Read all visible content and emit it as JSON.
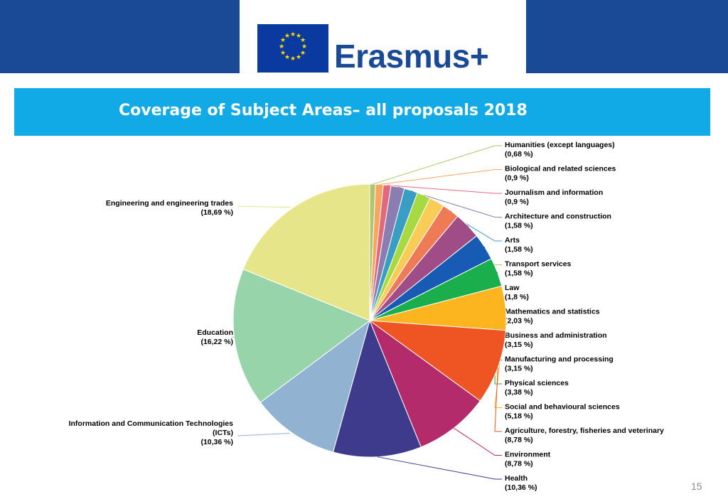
{
  "header": {
    "brand": "Erasmus+",
    "brand_colors": {
      "band": "#1a4a96",
      "title_bar": "#12aae6"
    }
  },
  "page": {
    "number": "15"
  },
  "chart_data": {
    "type": "pie",
    "title": "Coverage of Subject Areas– all proposals 2018",
    "start_direction": "top, clockwise",
    "slices": [
      {
        "label": "Humanities (except languages)",
        "value_label": "(0,68 %)",
        "value": 0.68,
        "color": "#b2c56e"
      },
      {
        "label": "Biological and related sciences",
        "value_label": "(0,9 %)",
        "value": 0.9,
        "color": "#f7a65e"
      },
      {
        "label": "Journalism and information",
        "value_label": "(0,9 %)",
        "value": 0.9,
        "color": "#e4687b"
      },
      {
        "label": "Architecture and construction",
        "value_label": "(1,58 %)",
        "value": 1.58,
        "color": "#8a7db2"
      },
      {
        "label": "Arts",
        "value_label": "(1,58 %)",
        "value": 1.58,
        "color": "#3a9ec4"
      },
      {
        "label": "Transport services",
        "value_label": "(1,58 %)",
        "value": 1.58,
        "color": "#a7d940"
      },
      {
        "label": "Law",
        "value_label": "(1,8 %)",
        "value": 1.8,
        "color": "#f9cc57"
      },
      {
        "label": "Mathematics and statistics",
        "value_label": "(2,03 %)",
        "value": 2.03,
        "color": "#ee7a56"
      },
      {
        "label": "Business and administration",
        "value_label": "(3,15 %)",
        "value": 3.15,
        "color": "#a04c86"
      },
      {
        "label": "Manufacturing and processing",
        "value_label": "(3,15 %)",
        "value": 3.15,
        "color": "#175bb5"
      },
      {
        "label": "Physical sciences",
        "value_label": "(3,38 %)",
        "value": 3.38,
        "color": "#1aae4c"
      },
      {
        "label": "Social and behavioural sciences",
        "value_label": "(5,18 %)",
        "value": 5.18,
        "color": "#fcb51f"
      },
      {
        "label": "Agriculture, forestry, fisheries and veterinary",
        "value_label": "(8,78 %)",
        "value": 8.78,
        "color": "#ee5522"
      },
      {
        "label": "Environment",
        "value_label": "(8,78 %)",
        "value": 8.78,
        "color": "#b42b6b"
      },
      {
        "label": "Health",
        "value_label": "(10,36 %)",
        "value": 10.36,
        "color": "#3e3a8c"
      },
      {
        "label": "Information and Communication Technologies (ICTs)",
        "value_label": "(10,36 %)",
        "value": 10.36,
        "color": "#91b2d1"
      },
      {
        "label": "Education",
        "value_label": "(16,22 %)",
        "value": 16.22,
        "color": "#98d4a9"
      },
      {
        "label": "Engineering and engineering trades",
        "value_label": "(18,69 %)",
        "value": 18.69,
        "color": "#e7e589"
      }
    ]
  }
}
